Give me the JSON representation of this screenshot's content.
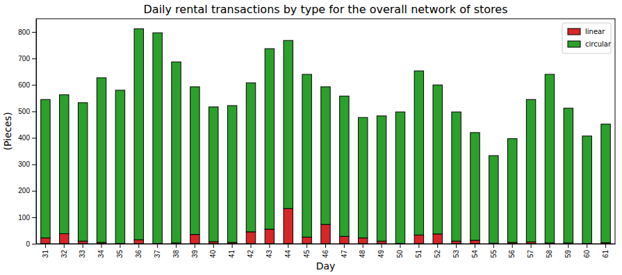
{
  "chart_data": {
    "type": "bar",
    "title": "Daily rental transactions by type for the overall network of stores",
    "x_label": "Day",
    "y_label": "(Pieces)",
    "categories": [
      "31",
      "32",
      "33",
      "34",
      "35",
      "36",
      "37",
      "38",
      "39",
      "40",
      "41",
      "42",
      "43",
      "44",
      "45",
      "46",
      "47",
      "48",
      "49",
      "50",
      "51",
      "52",
      "53",
      "54",
      "55",
      "56",
      "57",
      "58",
      "59",
      "60",
      "61"
    ],
    "series": [
      {
        "name": "linear",
        "color": "#d62728",
        "values": [
          22,
          38,
          10,
          5,
          1,
          15,
          1,
          3,
          35,
          8,
          5,
          45,
          55,
          133,
          25,
          73,
          28,
          22,
          10,
          1,
          33,
          37,
          10,
          13,
          2,
          5,
          7,
          3,
          3,
          1,
          4
        ]
      },
      {
        "name": "circular",
        "color": "#2ca02c",
        "values": [
          523,
          525,
          523,
          622,
          579,
          797,
          796,
          684,
          558,
          509,
          517,
          563,
          682,
          635,
          615,
          520,
          530,
          455,
          473,
          497,
          620,
          563,
          488,
          407,
          331,
          392,
          538,
          637,
          509,
          406,
          448
        ]
      }
    ],
    "stacked": true,
    "legend": "upper right",
    "grid": false,
    "ylim": [
      0,
      850
    ],
    "yticks": [
      0,
      100,
      200,
      300,
      400,
      500,
      600,
      700,
      800
    ]
  }
}
